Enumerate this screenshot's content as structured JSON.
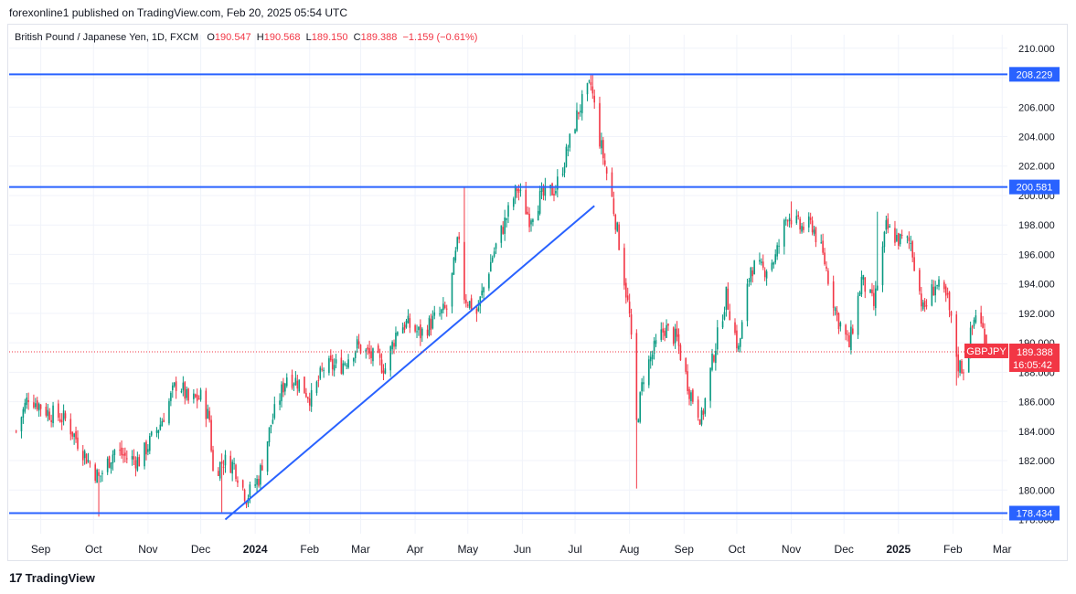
{
  "header": {
    "text": "forexonline1 published on TradingView.com, Feb 20, 2025 05:54 UTC"
  },
  "legend": {
    "instrument": "British Pound / Japanese Yen, 1D, FXCM",
    "open_label": "O",
    "open": "190.547",
    "high_label": "H",
    "high": "190.568",
    "low_label": "L",
    "low": "189.150",
    "close_label": "C",
    "close": "189.388",
    "change": "−1.159 (−0.61%)"
  },
  "footer": {
    "logo_text": "TradingView"
  },
  "colors": {
    "up": "#089981",
    "down": "#f23645",
    "line": "#2962ff",
    "label_bg": "#2962ff",
    "price_bg": "#f23645"
  },
  "chart_data": {
    "type": "candlestick",
    "symbol": "GBPJPY",
    "ylim": [
      176,
      211
    ],
    "y_ticks": [
      "178.000",
      "180.000",
      "182.000",
      "184.000",
      "186.000",
      "188.000",
      "190.000",
      "192.000",
      "194.000",
      "196.000",
      "198.000",
      "200.000",
      "202.000",
      "204.000",
      "206.000",
      "208.000",
      "210.000"
    ],
    "x_ticks": [
      "Sep",
      "Oct",
      "Nov",
      "Dec",
      "2024",
      "Feb",
      "Mar",
      "Apr",
      "May",
      "Jun",
      "Jul",
      "Aug",
      "Sep",
      "Oct",
      "Nov",
      "Dec",
      "2025",
      "Feb",
      "Mar"
    ],
    "x_tick_bold": [
      "2024",
      "2025"
    ],
    "horizontal_lines": [
      {
        "value": 208.229,
        "label": "208.229"
      },
      {
        "value": 200.581,
        "label": "200.581"
      },
      {
        "value": 178.434,
        "label": "178.434"
      }
    ],
    "trend_line": {
      "from": [
        "2023-12-15",
        178.0
      ],
      "to": [
        "2024-07-12",
        199.3
      ]
    },
    "last_price": {
      "value": 189.388,
      "label": "189.388",
      "symbol": "GBPJPY",
      "countdown": "16:05:42"
    },
    "price_path": [
      [
        "2023-08-18",
        184.0
      ],
      [
        "2023-08-25",
        186.4
      ],
      [
        "2023-09-05",
        185.3
      ],
      [
        "2023-09-15",
        184.8
      ],
      [
        "2023-09-28",
        182.0
      ],
      [
        "2023-10-04",
        180.8
      ],
      [
        "2023-10-13",
        182.7
      ],
      [
        "2023-10-20",
        182.2
      ],
      [
        "2023-10-27",
        182.0
      ],
      [
        "2023-11-08",
        184.5
      ],
      [
        "2023-11-14",
        186.3
      ],
      [
        "2023-11-18",
        187.5
      ],
      [
        "2023-11-24",
        186.0
      ],
      [
        "2023-12-01",
        186.3
      ],
      [
        "2023-12-06",
        184.8
      ],
      [
        "2023-12-08",
        181.2
      ],
      [
        "2023-12-14",
        182.0
      ],
      [
        "2023-12-20",
        181.7
      ],
      [
        "2023-12-27",
        179.5
      ],
      [
        "2024-01-03",
        180.8
      ],
      [
        "2024-01-10",
        184.5
      ],
      [
        "2024-01-19",
        187.8
      ],
      [
        "2024-01-26",
        187.3
      ],
      [
        "2024-02-02",
        186.2
      ],
      [
        "2024-02-09",
        188.3
      ],
      [
        "2024-02-19",
        188.5
      ],
      [
        "2024-02-28",
        189.8
      ],
      [
        "2024-03-08",
        189.0
      ],
      [
        "2024-03-15",
        188.3
      ],
      [
        "2024-03-22",
        191.0
      ],
      [
        "2024-03-27",
        191.3
      ],
      [
        "2024-04-04",
        190.6
      ],
      [
        "2024-04-12",
        191.6
      ],
      [
        "2024-04-19",
        192.3
      ],
      [
        "2024-04-26",
        197.3
      ],
      [
        "2024-04-29",
        193.2
      ],
      [
        "2024-05-06",
        192.0
      ],
      [
        "2024-05-15",
        195.9
      ],
      [
        "2024-05-22",
        198.2
      ],
      [
        "2024-05-29",
        200.5
      ],
      [
        "2024-06-05",
        198.5
      ],
      [
        "2024-06-11",
        199.8
      ],
      [
        "2024-06-20",
        200.5
      ],
      [
        "2024-06-26",
        202.8
      ],
      [
        "2024-07-03",
        205.8
      ],
      [
        "2024-07-10",
        207.5
      ],
      [
        "2024-07-15",
        203.8
      ],
      [
        "2024-07-22",
        199.8
      ],
      [
        "2024-07-26",
        196.8
      ],
      [
        "2024-08-01",
        191.8
      ],
      [
        "2024-08-05",
        184.5
      ],
      [
        "2024-08-09",
        187.8
      ],
      [
        "2024-08-16",
        189.8
      ],
      [
        "2024-08-21",
        191.0
      ],
      [
        "2024-08-28",
        190.2
      ],
      [
        "2024-09-04",
        186.8
      ],
      [
        "2024-09-11",
        184.8
      ],
      [
        "2024-09-18",
        189.3
      ],
      [
        "2024-09-25",
        193.2
      ],
      [
        "2024-10-02",
        189.5
      ],
      [
        "2024-10-09",
        195.2
      ],
      [
        "2024-10-16",
        194.9
      ],
      [
        "2024-10-23",
        195.8
      ],
      [
        "2024-10-30",
        198.8
      ],
      [
        "2024-11-06",
        197.8
      ],
      [
        "2024-11-13",
        198.0
      ],
      [
        "2024-11-20",
        195.5
      ],
      [
        "2024-11-27",
        191.8
      ],
      [
        "2024-12-04",
        189.8
      ],
      [
        "2024-12-11",
        194.3
      ],
      [
        "2024-12-18",
        192.5
      ],
      [
        "2024-12-25",
        197.8
      ],
      [
        "2025-01-01",
        197.0
      ],
      [
        "2025-01-08",
        196.8
      ],
      [
        "2025-01-15",
        192.2
      ],
      [
        "2025-01-22",
        194.0
      ],
      [
        "2025-01-29",
        192.8
      ],
      [
        "2025-02-04",
        188.5
      ],
      [
        "2025-02-07",
        188.3
      ],
      [
        "2025-02-14",
        192.1
      ],
      [
        "2025-02-19",
        190.5
      ],
      [
        "2025-02-20",
        189.388
      ]
    ],
    "extremes": [
      {
        "date": "2023-10-04",
        "low": 178.2
      },
      {
        "date": "2023-12-13",
        "low": 178.5
      },
      {
        "date": "2024-04-29",
        "high": 200.6
      },
      {
        "date": "2024-07-11",
        "high": 208.2
      },
      {
        "date": "2024-08-05",
        "low": 180.1
      },
      {
        "date": "2024-11-01",
        "high": 199.6
      },
      {
        "date": "2024-12-20",
        "high": 198.9
      },
      {
        "date": "2025-02-03",
        "low": 187.1
      }
    ]
  }
}
